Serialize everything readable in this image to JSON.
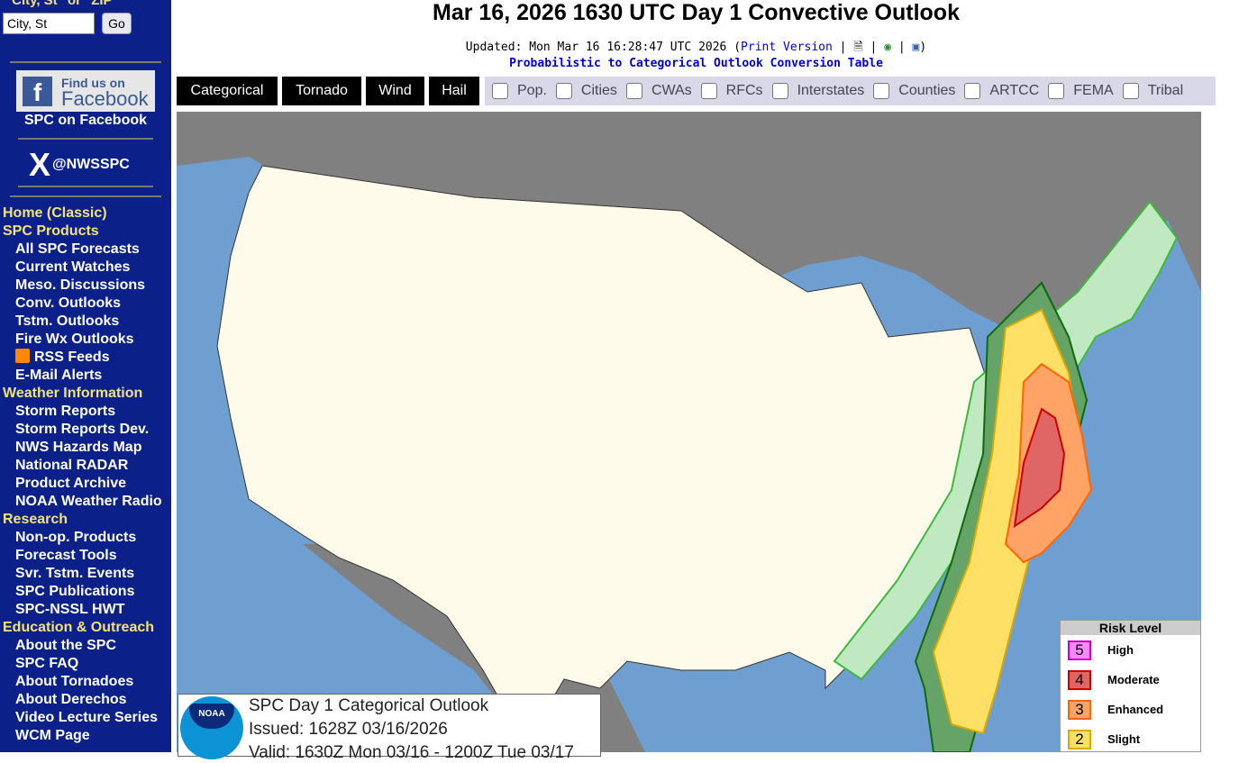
{
  "sidebar": {
    "search_hint": "\"City, St\" or \"ZIP\"",
    "search_value": "City, St",
    "go_label": "Go",
    "facebook_line1": "Find us on",
    "facebook_line2": "Facebook",
    "facebook_link": "SPC on Facebook",
    "x_handle": "@NWSSPC",
    "rss_label": "RSS Feeds",
    "nav": [
      {
        "type": "h",
        "label": "Home (Classic)"
      },
      {
        "type": "h",
        "label": "SPC Products"
      },
      {
        "type": "i",
        "label": "All SPC Forecasts"
      },
      {
        "type": "i",
        "label": "Current Watches"
      },
      {
        "type": "i",
        "label": "Meso. Discussions"
      },
      {
        "type": "i",
        "label": "Conv. Outlooks"
      },
      {
        "type": "i",
        "label": "Tstm. Outlooks"
      },
      {
        "type": "i",
        "label": "Fire Wx Outlooks"
      },
      {
        "type": "rss",
        "label": "RSS Feeds"
      },
      {
        "type": "i",
        "label": "E-Mail Alerts"
      },
      {
        "type": "h",
        "label": "Weather Information"
      },
      {
        "type": "i",
        "label": "Storm Reports"
      },
      {
        "type": "i",
        "label": "Storm Reports Dev."
      },
      {
        "type": "i",
        "label": "NWS Hazards Map"
      },
      {
        "type": "i",
        "label": "National RADAR"
      },
      {
        "type": "i",
        "label": "Product Archive"
      },
      {
        "type": "i",
        "label": "NOAA Weather Radio"
      },
      {
        "type": "h",
        "label": "Research"
      },
      {
        "type": "i",
        "label": "Non-op. Products"
      },
      {
        "type": "i",
        "label": "Forecast Tools"
      },
      {
        "type": "i",
        "label": "Svr. Tstm. Events"
      },
      {
        "type": "i",
        "label": "SPC Publications"
      },
      {
        "type": "i",
        "label": "SPC-NSSL HWT"
      },
      {
        "type": "h",
        "label": "Education & Outreach"
      },
      {
        "type": "i",
        "label": "About the SPC"
      },
      {
        "type": "i",
        "label": "SPC FAQ"
      },
      {
        "type": "i",
        "label": "About Tornadoes"
      },
      {
        "type": "i",
        "label": "About Derechos"
      },
      {
        "type": "i",
        "label": "Video Lecture Series"
      },
      {
        "type": "i",
        "label": "WCM Page"
      }
    ]
  },
  "header": {
    "title": "Mar 16, 2026 1630 UTC Day 1 Convective Outlook",
    "updated_prefix": "Updated: Mon Mar 16 16:28:47 UTC 2026 (",
    "print_version": "Print Version",
    "updated_suffix": ")",
    "conversion_link": "Probabilistic to Categorical Outlook Conversion Table"
  },
  "tabs": [
    "Categorical",
    "Tornado",
    "Wind",
    "Hail"
  ],
  "overlays": [
    "Pop.",
    "Cities",
    "CWAs",
    "RFCs",
    "Interstates",
    "Counties",
    "ARTCC",
    "FEMA",
    "Tribal"
  ],
  "infobox": {
    "line1": "SPC Day 1 Categorical Outlook",
    "line2": "Issued: 1628Z 03/16/2026",
    "line3": "Valid: 1630Z Mon 03/16 - 1200Z Tue 03/17",
    "logo_text": "NOAA"
  },
  "legend": {
    "title": "Risk Level",
    "items": [
      {
        "num": "5",
        "label": "High",
        "fill": "#ff88ff",
        "border": "#cc00cc"
      },
      {
        "num": "4",
        "label": "Moderate",
        "fill": "#e06666",
        "border": "#cc0000"
      },
      {
        "num": "3",
        "label": "Enhanced",
        "fill": "#ffa366",
        "border": "#ff6600"
      },
      {
        "num": "2",
        "label": "Slight",
        "fill": "#ffe066",
        "border": "#ddaa00"
      }
    ]
  },
  "colors": {
    "water": "#6f9fd0",
    "land_outside": "#808080",
    "conus": "#fffbea",
    "tstm": "#c1e9c1",
    "mrgl": "#66a366",
    "slgt": "#ffe066",
    "enh": "#ffa366",
    "mdt": "#e06666"
  }
}
